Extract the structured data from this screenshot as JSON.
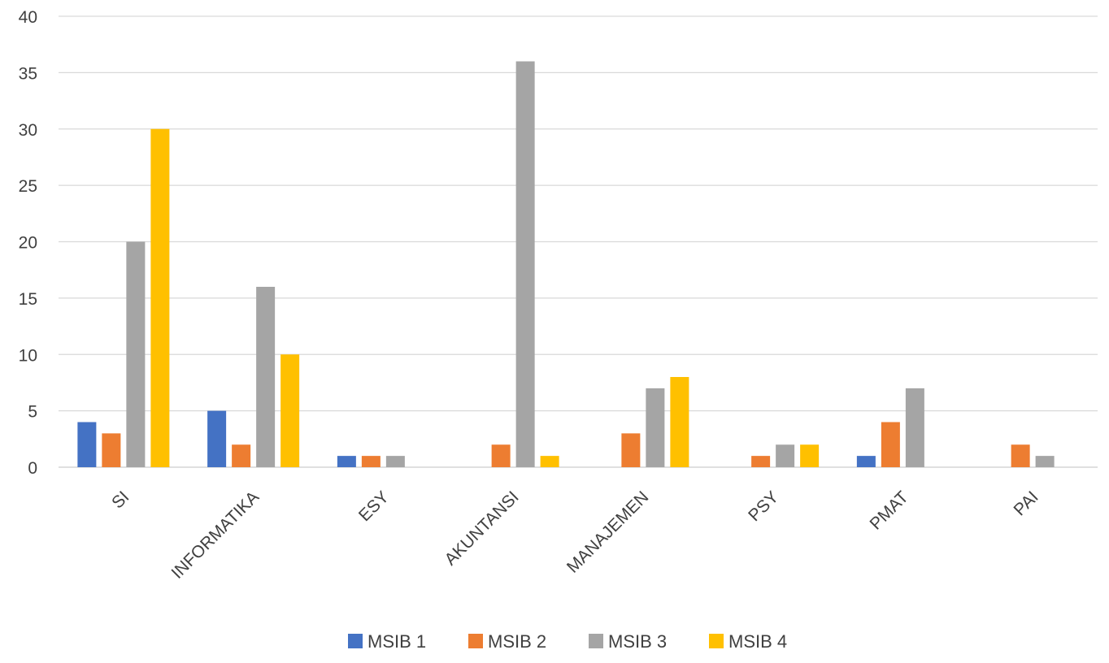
{
  "chart_data": {
    "type": "bar",
    "title": "",
    "xlabel": "",
    "ylabel": "",
    "categories": [
      "SI",
      "INFORMATIKA",
      "ESY",
      "AKUNTANSI",
      "MANAJEMEN",
      "PSY",
      "PMAT",
      "PAI"
    ],
    "series": [
      {
        "name": "MSIB 1",
        "color": "#4472C4",
        "values": [
          4,
          5,
          1,
          0,
          0,
          0,
          1,
          0
        ]
      },
      {
        "name": "MSIB 2",
        "color": "#ED7D31",
        "values": [
          3,
          2,
          1,
          2,
          3,
          1,
          4,
          2
        ]
      },
      {
        "name": "MSIB 3",
        "color": "#A5A5A5",
        "values": [
          20,
          16,
          1,
          36,
          7,
          2,
          7,
          1
        ]
      },
      {
        "name": "MSIB 4",
        "color": "#FFC000",
        "values": [
          30,
          10,
          0,
          1,
          8,
          2,
          0,
          0
        ]
      }
    ],
    "ylim": [
      0,
      40
    ],
    "yticks": [
      "0",
      "5",
      "10",
      "15",
      "20",
      "25",
      "30",
      "35",
      "40"
    ],
    "grid": true,
    "legend": "bottom",
    "colors": {
      "gridline": "#D9D9D9",
      "text": "#404040"
    }
  }
}
